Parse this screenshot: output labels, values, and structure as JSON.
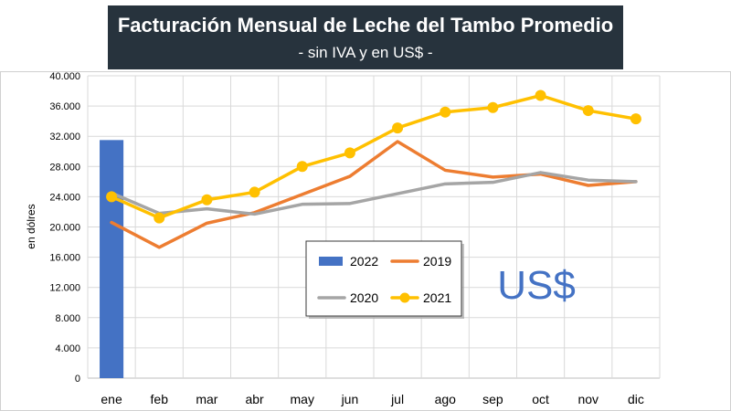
{
  "chart_data": {
    "type": "line",
    "title": "Facturación Mensual de Leche del Tambo Promedio",
    "subtitle": "- sin IVA y en US$ -",
    "ylabel": "en dólres",
    "annotation": "US$",
    "categories": [
      "ene",
      "feb",
      "mar",
      "abr",
      "may",
      "jun",
      "jul",
      "ago",
      "sep",
      "oct",
      "nov",
      "dic"
    ],
    "ylim": [
      0,
      40000
    ],
    "y_ticks": [
      "0",
      "4.000",
      "8.000",
      "12.000",
      "16.000",
      "20.000",
      "24.000",
      "28.000",
      "32.000",
      "36.000",
      "40.000"
    ],
    "grid": true,
    "legend_position": "center-right",
    "series": [
      {
        "name": "2022",
        "kind": "bar",
        "color": "#4472c4",
        "values": [
          31500,
          null,
          null,
          null,
          null,
          null,
          null,
          null,
          null,
          null,
          null,
          null
        ]
      },
      {
        "name": "2019",
        "kind": "line",
        "color": "#ed7d31",
        "values": [
          20600,
          17300,
          20500,
          21900,
          24300,
          26700,
          31300,
          27500,
          26600,
          27000,
          25500,
          26000
        ]
      },
      {
        "name": "2020",
        "kind": "line",
        "color": "#a5a5a5",
        "values": [
          24500,
          21800,
          22400,
          21700,
          23000,
          23100,
          24400,
          25700,
          25900,
          27200,
          26200,
          26000
        ]
      },
      {
        "name": "2021",
        "kind": "line-markers",
        "color": "#ffc000",
        "values": [
          24000,
          21200,
          23600,
          24600,
          28000,
          29800,
          33100,
          35200,
          35800,
          37400,
          35400,
          34300
        ]
      }
    ],
    "legend_order": [
      "2022",
      "2019",
      "2020",
      "2021"
    ]
  }
}
